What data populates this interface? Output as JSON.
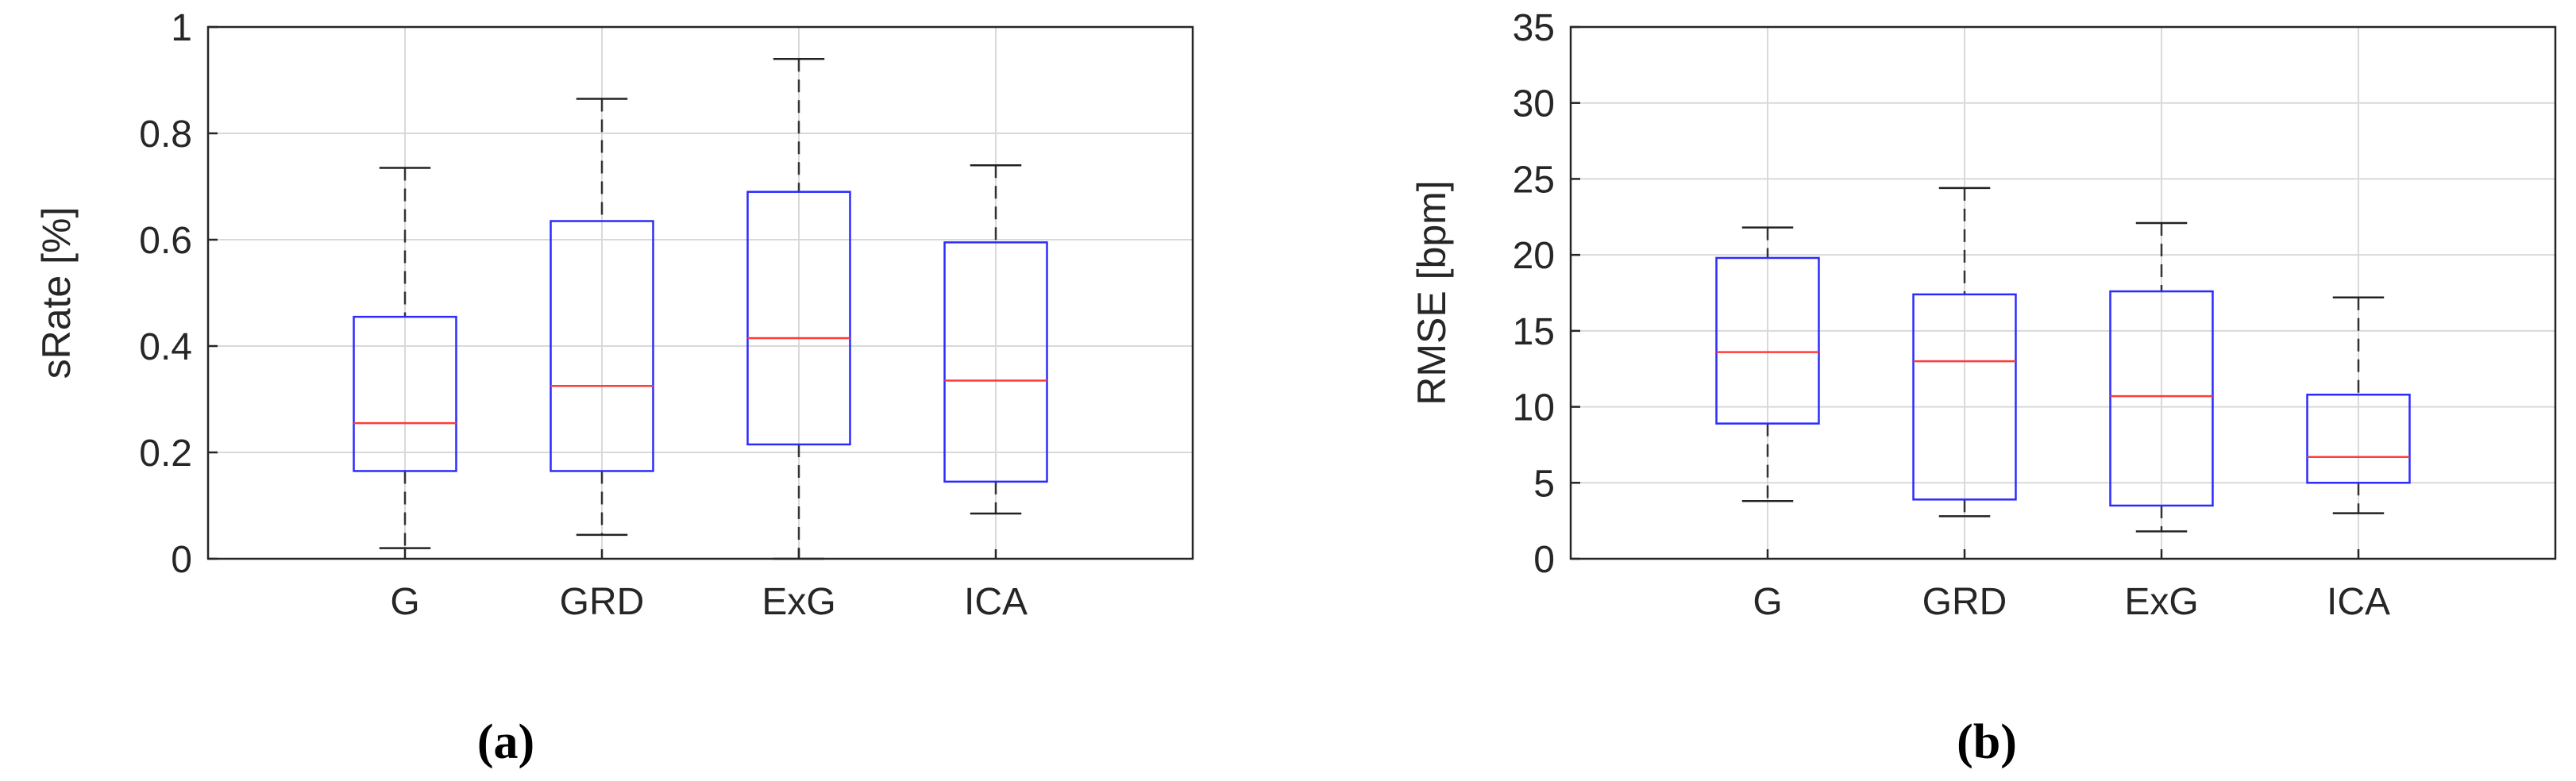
{
  "chart_data": [
    {
      "type": "box",
      "panel_label": "(a)",
      "ylabel": "sRate [%]",
      "categories": [
        "G",
        "GRD",
        "ExG",
        "ICA"
      ],
      "ylim": [
        0,
        1
      ],
      "yticks": [
        0,
        0.2,
        0.4,
        0.6,
        0.8,
        1
      ],
      "ytick_labels": [
        "0",
        "0.2",
        "0.4",
        "0.6",
        "0.8",
        "1"
      ],
      "grid": true,
      "boxes": [
        {
          "category": "G",
          "whisker_low": 0.02,
          "q1": 0.165,
          "median": 0.255,
          "q3": 0.455,
          "whisker_high": 0.735
        },
        {
          "category": "GRD",
          "whisker_low": 0.045,
          "q1": 0.165,
          "median": 0.325,
          "q3": 0.635,
          "whisker_high": 0.865
        },
        {
          "category": "ExG",
          "whisker_low": 0.0,
          "q1": 0.215,
          "median": 0.415,
          "q3": 0.69,
          "whisker_high": 0.94
        },
        {
          "category": "ICA",
          "whisker_low": 0.085,
          "q1": 0.145,
          "median": 0.335,
          "q3": 0.595,
          "whisker_high": 0.74
        }
      ],
      "colors": {
        "box": "#2b2bff",
        "median": "#ff3b3b",
        "whisker": "#333333",
        "grid": "#d9d9d9"
      }
    },
    {
      "type": "box",
      "panel_label": "(b)",
      "ylabel": "RMSE [bpm]",
      "categories": [
        "G",
        "GRD",
        "ExG",
        "ICA"
      ],
      "ylim": [
        0,
        35
      ],
      "yticks": [
        0,
        5,
        10,
        15,
        20,
        25,
        30,
        35
      ],
      "ytick_labels": [
        "0",
        "5",
        "10",
        "15",
        "20",
        "25",
        "30",
        "35"
      ],
      "grid": true,
      "boxes": [
        {
          "category": "G",
          "whisker_low": 3.8,
          "q1": 8.9,
          "median": 13.6,
          "q3": 19.8,
          "whisker_high": 21.8
        },
        {
          "category": "GRD",
          "whisker_low": 2.8,
          "q1": 3.9,
          "median": 13.0,
          "q3": 17.4,
          "whisker_high": 24.4
        },
        {
          "category": "ExG",
          "whisker_low": 1.8,
          "q1": 3.5,
          "median": 10.7,
          "q3": 17.6,
          "whisker_high": 22.1
        },
        {
          "category": "ICA",
          "whisker_low": 3.0,
          "q1": 5.0,
          "median": 6.7,
          "q3": 10.8,
          "whisker_high": 17.2
        }
      ],
      "colors": {
        "box": "#2b2bff",
        "median": "#ff3b3b",
        "whisker": "#333333",
        "grid": "#d9d9d9"
      }
    }
  ]
}
